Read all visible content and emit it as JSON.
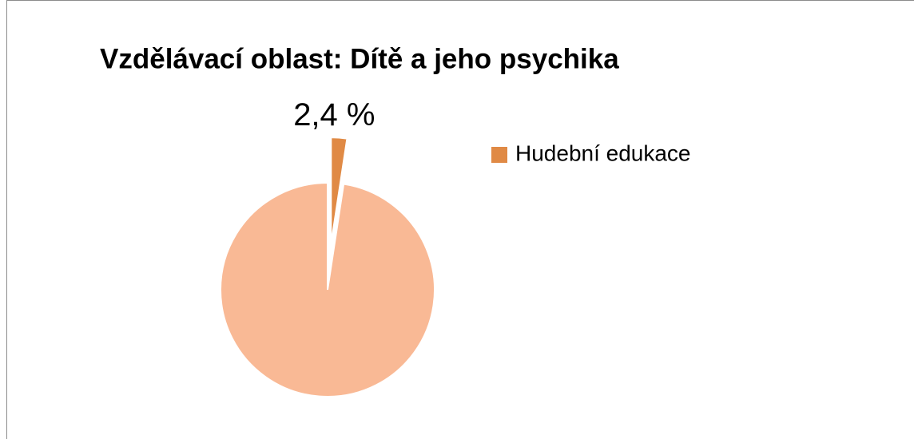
{
  "chart_data": {
    "type": "pie",
    "title": "Vzdělávací oblast: Dítě a jeho psychika",
    "categories": [
      "Hudební edukace",
      null
    ],
    "values": [
      2.4,
      97.6
    ],
    "value_labels": [
      "2,4 %",
      null
    ],
    "colors": [
      "#e08a45",
      "#f9b995"
    ],
    "legend": "right"
  }
}
